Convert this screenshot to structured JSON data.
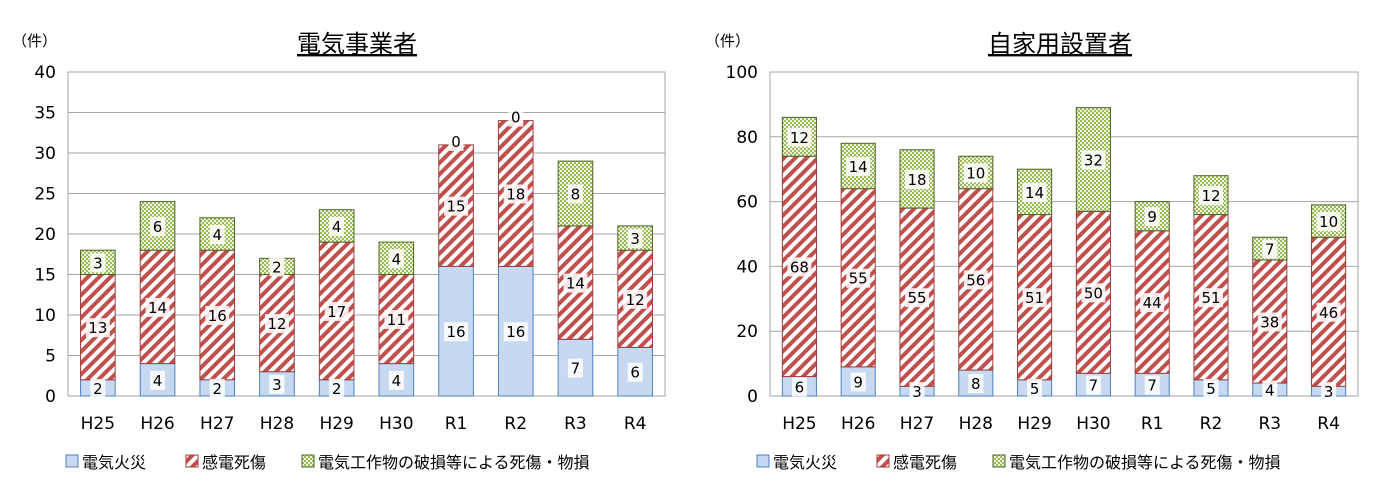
{
  "colors": {
    "fire_fill": "#c6d9f1",
    "fire_stroke": "#4f81bd",
    "shock_fill": "#c0504d",
    "shock_stroke": "#a03c3a",
    "damage_fill": "#d7e4bd",
    "damage_stroke": "#4f6228",
    "grid": "#a6a6a6"
  },
  "chart_data": [
    {
      "type": "bar",
      "stacked": true,
      "title": "電気事業者",
      "unit": "（件）",
      "categories": [
        "H25",
        "H26",
        "H27",
        "H28",
        "H29",
        "H30",
        "R1",
        "R2",
        "R3",
        "R4"
      ],
      "ylim": [
        0,
        40
      ],
      "yticks": [
        0,
        5,
        10,
        15,
        20,
        25,
        30,
        35,
        40
      ],
      "grid": true,
      "legend": "bottom",
      "series": [
        {
          "name": "電気火災",
          "values": [
            2,
            4,
            2,
            3,
            2,
            4,
            16,
            16,
            7,
            6
          ]
        },
        {
          "name": "感電死傷",
          "values": [
            13,
            14,
            16,
            12,
            17,
            11,
            15,
            18,
            14,
            12
          ]
        },
        {
          "name": "電気工作物の破損等による死傷・物損",
          "values": [
            3,
            6,
            4,
            2,
            4,
            4,
            0,
            0,
            8,
            3
          ]
        }
      ]
    },
    {
      "type": "bar",
      "stacked": true,
      "title": "自家用設置者",
      "unit": "（件）",
      "categories": [
        "H25",
        "H26",
        "H27",
        "H28",
        "H29",
        "H30",
        "R1",
        "R2",
        "R3",
        "R4"
      ],
      "ylim": [
        0,
        100
      ],
      "yticks": [
        0,
        20,
        40,
        60,
        80,
        100
      ],
      "grid": true,
      "legend": "bottom",
      "series": [
        {
          "name": "電気火災",
          "values": [
            6,
            9,
            3,
            8,
            5,
            7,
            7,
            5,
            4,
            3
          ]
        },
        {
          "name": "感電死傷",
          "values": [
            68,
            55,
            55,
            56,
            51,
            50,
            44,
            51,
            38,
            46
          ]
        },
        {
          "name": "電気工作物の破損等による死傷・物損",
          "values": [
            12,
            14,
            18,
            10,
            14,
            32,
            9,
            12,
            7,
            10
          ]
        }
      ]
    }
  ]
}
